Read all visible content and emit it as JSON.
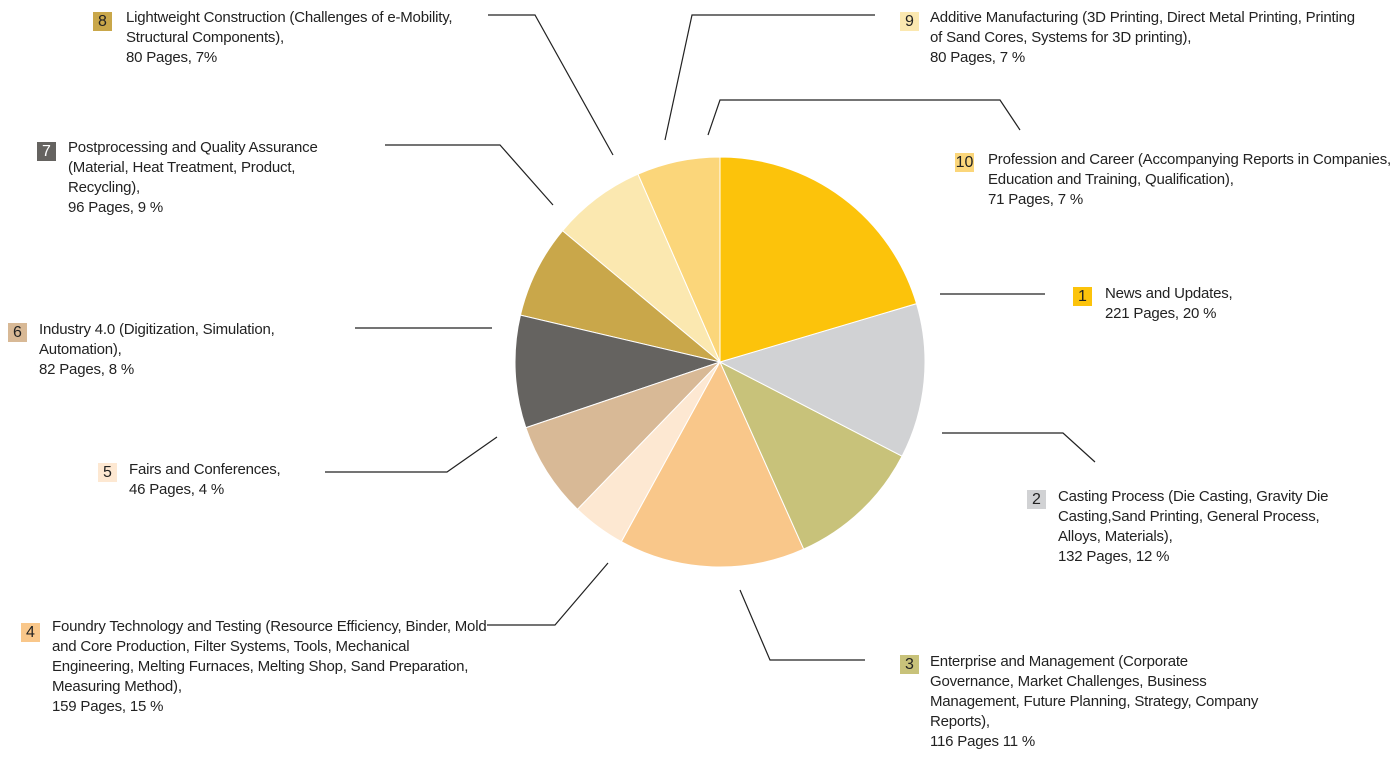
{
  "chart_data": {
    "type": "pie",
    "numbers": [
      1,
      2,
      3,
      4,
      5,
      6,
      7,
      8,
      9,
      10
    ],
    "categories": [
      "News and Updates,",
      "Casting Process (Die Casting, Gravity Die Casting,Sand Printing, General Process, Alloys, Materials),",
      "Enterprise and Management (Corporate Governance, Market Challenges, Business Management, Future Planning, Strategy, Company Reports),",
      "Foundry Technology and Testing (Resource Efficiency, Binder, Mold and Core Production, Filter Systems, Tools, Mechanical Engineering, Melting Furnaces, Melting Shop, Sand Preparation, Measuring Method),",
      "Fairs and Conferences,",
      "Industry 4.0 (Digitization, Simulation, Automation),",
      "Postprocessing and Quality Assurance (Material, Heat Treatment, Product, Recycling),",
      "Lightweight Construction (Challenges of e-Mobility, Structural Components),",
      "Additive Manufacturing (3D Printing, Direct Metal Printing, Printing of Sand Cores, Systems for 3D printing),",
      "Profession and Career (Accompanying Reports in Companies, Education and Training, Qualification),"
    ],
    "values": [
      221,
      132,
      116,
      159,
      46,
      82,
      96,
      80,
      80,
      71
    ],
    "value_labels": [
      "221 Pages, 20 %",
      "132 Pages, 12 %",
      "116 Pages 11 %",
      "159 Pages, 15 %",
      "46 Pages, 4 %",
      "82 Pages, 8 %",
      "96 Pages, 9 %",
      "80 Pages, 7%",
      "80 Pages, 7 %",
      "71 Pages, 7 %"
    ],
    "colors": [
      "#fcc30b",
      "#d1d2d4",
      "#c8c27a",
      "#f9c78a",
      "#fde8d2",
      "#d8b996",
      "#656360",
      "#c9a74a",
      "#fbe8b0",
      "#fbd67a"
    ]
  }
}
